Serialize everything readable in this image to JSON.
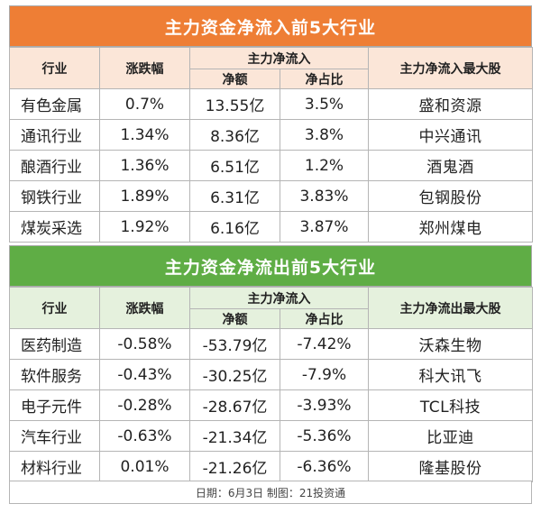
{
  "inflow": {
    "title": "主力资金净流入前5大行业",
    "headers": {
      "industry": "行业",
      "change": "涨跌幅",
      "group": "主力净流入",
      "amount": "净额",
      "ratio": "净占比",
      "top_stock": "主力净流入最大股"
    },
    "rows": [
      {
        "industry": "有色金属",
        "change": "0.7%",
        "amount": "13.55亿",
        "ratio": "3.5%",
        "top_stock": "盛和资源"
      },
      {
        "industry": "通讯行业",
        "change": "1.34%",
        "amount": "8.36亿",
        "ratio": "3.8%",
        "top_stock": "中兴通讯"
      },
      {
        "industry": "酿酒行业",
        "change": "1.36%",
        "amount": "6.51亿",
        "ratio": "1.2%",
        "top_stock": "酒鬼酒"
      },
      {
        "industry": "钢铁行业",
        "change": "1.89%",
        "amount": "6.31亿",
        "ratio": "3.83%",
        "top_stock": "包钢股份"
      },
      {
        "industry": "煤炭采选",
        "change": "1.92%",
        "amount": "6.16亿",
        "ratio": "3.87%",
        "top_stock": "郑州煤电"
      }
    ]
  },
  "outflow": {
    "title": "主力资金净流出前5大行业",
    "headers": {
      "industry": "行业",
      "change": "涨跌幅",
      "group": "主力净流入",
      "amount": "净额",
      "ratio": "净占比",
      "top_stock": "主力净流出最大股"
    },
    "rows": [
      {
        "industry": "医药制造",
        "change": "-0.58%",
        "amount": "-53.79亿",
        "ratio": "-7.42%",
        "top_stock": "沃森生物"
      },
      {
        "industry": "软件服务",
        "change": "-0.43%",
        "amount": "-30.25亿",
        "ratio": "-7.9%",
        "top_stock": "科大讯飞"
      },
      {
        "industry": "电子元件",
        "change": "-0.28%",
        "amount": "-28.67亿",
        "ratio": "-3.93%",
        "top_stock": "TCL科技"
      },
      {
        "industry": "汽车行业",
        "change": "-0.63%",
        "amount": "-21.34亿",
        "ratio": "-5.36%",
        "top_stock": "比亚迪"
      },
      {
        "industry": "材料行业",
        "change": "0.01%",
        "amount": "-21.26亿",
        "ratio": "-6.36%",
        "top_stock": "隆基股份"
      }
    ]
  },
  "footer": {
    "text": "日期：6月3日  制图：21投资通"
  },
  "colors": {
    "inflow_title_bg": "#ee7e35",
    "inflow_header_bg": "#fbe6d8",
    "outflow_title_bg": "#5fad45",
    "outflow_header_bg": "#e5f1dd"
  }
}
